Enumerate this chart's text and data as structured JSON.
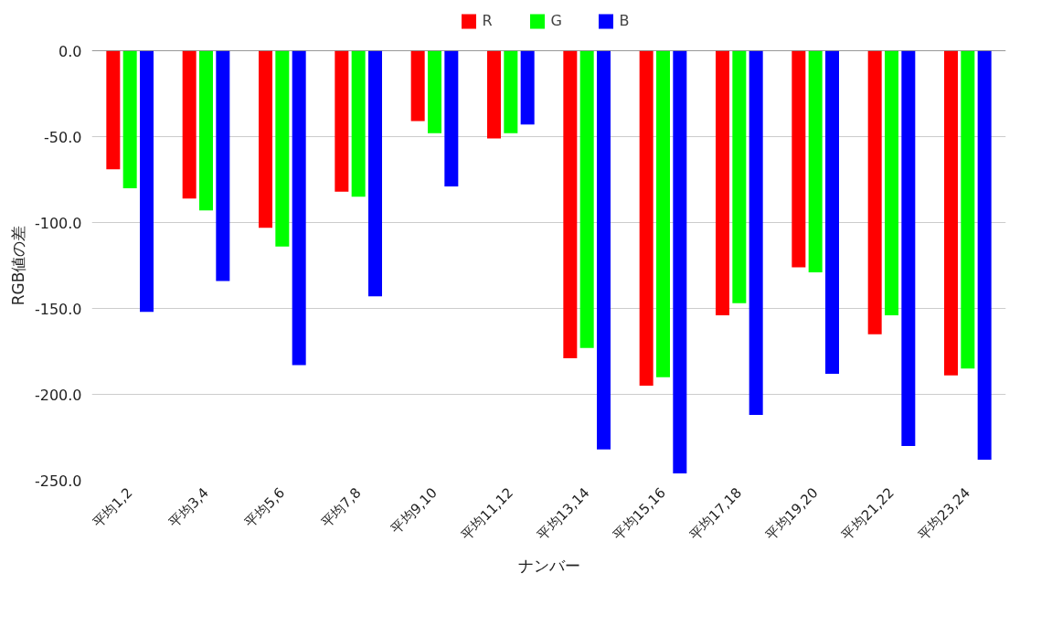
{
  "chart_data": {
    "type": "bar",
    "xlabel": "ナンバー",
    "ylabel": "RGB値の差",
    "categories": [
      "平均1,2",
      "平均3,4",
      "平均5,6",
      "平均7,8",
      "平均9,10",
      "平均11,12",
      "平均13,14",
      "平均15,16",
      "平均17,18",
      "平均19,20",
      "平均21,22",
      "平均23,24"
    ],
    "series": [
      {
        "name": "R",
        "color": "#ff0000",
        "values": [
          -69,
          -86,
          -103,
          -82,
          -41,
          -51,
          -179,
          -195,
          -154,
          -126,
          -165,
          -189
        ]
      },
      {
        "name": "G",
        "color": "#00ff00",
        "values": [
          -80,
          -93,
          -114,
          -85,
          -48,
          -48,
          -173,
          -190,
          -147,
          -129,
          -154,
          -185
        ]
      },
      {
        "name": "B",
        "color": "#0000ff",
        "values": [
          -152,
          -134,
          -183,
          -143,
          -79,
          -43,
          -232,
          -246,
          -212,
          -188,
          -230,
          -238
        ]
      }
    ],
    "ylim": [
      -250,
      0
    ],
    "yticks": [
      {
        "value": 0,
        "label": "0.0"
      },
      {
        "value": -50,
        "label": "-50.0"
      },
      {
        "value": -100,
        "label": "-100.0"
      },
      {
        "value": -150,
        "label": "-150.0"
      },
      {
        "value": -200,
        "label": "-200.0"
      },
      {
        "value": -250,
        "label": "-250.0"
      }
    ],
    "grid": "y",
    "legend": "top"
  }
}
